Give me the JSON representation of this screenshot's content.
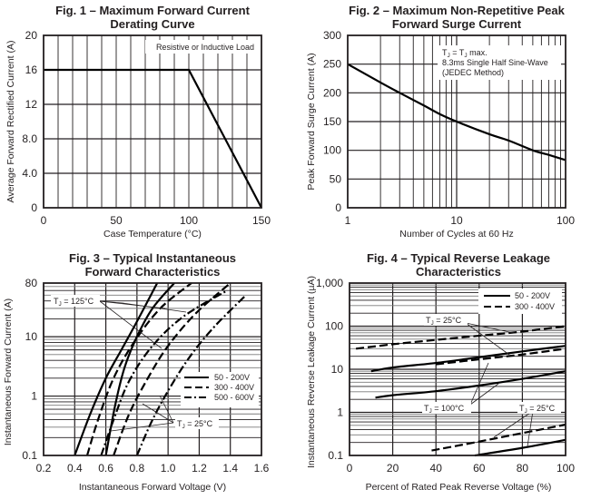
{
  "chart_data": [
    {
      "id": "fig1",
      "type": "line",
      "title": [
        "Fig. 1 – Maximum Forward Current",
        "Derating Curve"
      ],
      "xlabel": "Case Temperature (°C)",
      "ylabel": "Average Forward Rectified Current (A)",
      "xlim": [
        0,
        150
      ],
      "ylim": [
        0,
        20
      ],
      "xscale": "linear",
      "yscale": "linear",
      "xticks": [
        0,
        50,
        100,
        150
      ],
      "xtick_labels": [
        "0",
        "50",
        "100",
        "150"
      ],
      "yticks": [
        0,
        4,
        8,
        12,
        16,
        20
      ],
      "ytick_labels": [
        "0",
        "4.0",
        "8.0",
        "12",
        "16",
        "20"
      ],
      "grid": true,
      "annotations": [
        "Resistive or Inductive Load"
      ],
      "series": [
        {
          "name": "derating",
          "style": "solid",
          "x": [
            0,
            100,
            150
          ],
          "y": [
            16,
            16,
            0
          ]
        }
      ]
    },
    {
      "id": "fig2",
      "type": "line",
      "title": [
        "Fig. 2 – Maximum Non-Repetitive Peak",
        "Forward Surge Current"
      ],
      "xlabel": "Number of Cycles at 60 Hz",
      "ylabel": "Peak Forward Surge Current (A)",
      "xlim": [
        1,
        100
      ],
      "ylim": [
        0,
        300
      ],
      "xscale": "log",
      "yscale": "linear",
      "xticks": [
        1,
        10,
        100
      ],
      "xtick_labels": [
        "1",
        "10",
        "100"
      ],
      "yticks": [
        0,
        50,
        100,
        150,
        200,
        250,
        300
      ],
      "ytick_labels": [
        "0",
        "50",
        "100",
        "150",
        "200",
        "250",
        "300"
      ],
      "grid": true,
      "annotations": [
        "T<sub>J</sub> = T<sub>J</sub> max.",
        "8.3ms Single Half Sine-Wave",
        "(JEDEC Method)"
      ],
      "annotation_text": {
        "line1_a": "T",
        "line1_sub": "J",
        "line1_b": " = T",
        "line1_sub2": "J",
        "line1_c": " max.",
        "line2": "8.3ms Single Half Sine-Wave",
        "line3": "(JEDEC Method)"
      },
      "series": [
        {
          "name": "surge",
          "style": "solid",
          "x": [
            1,
            2,
            3,
            5,
            7,
            10,
            20,
            30,
            50,
            70,
            100
          ],
          "y": [
            250,
            218,
            200,
            178,
            163,
            150,
            128,
            117,
            100,
            92,
            83
          ]
        }
      ]
    },
    {
      "id": "fig3",
      "type": "line",
      "title": [
        "Fig. 3 – Typical Instantaneous",
        "Forward Characteristics"
      ],
      "xlabel": "Instantaneous Forward Voltage (V)",
      "ylabel": "Instantaneous Forward Current (A)",
      "xlim": [
        0.2,
        1.6
      ],
      "ylim": [
        0.1,
        80
      ],
      "xscale": "linear",
      "yscale": "log",
      "xticks": [
        0.2,
        0.4,
        0.6,
        0.8,
        1.0,
        1.2,
        1.4,
        1.6
      ],
      "xtick_labels": [
        "0.2",
        "0.4",
        "0.6",
        "0.8",
        "1.0",
        "1.2",
        "1.4",
        "1.6"
      ],
      "yticks": [
        0.1,
        1,
        10,
        80
      ],
      "ytick_labels": [
        "0.1",
        "1",
        "10",
        "80"
      ],
      "grid": true,
      "legend": {
        "position": "center-right",
        "entries": [
          {
            "label": "50 - 200V",
            "style": "solid"
          },
          {
            "label": "300 - 400V",
            "style": "dashed"
          },
          {
            "label": "500 - 600V",
            "style": "dashdot"
          }
        ]
      },
      "labels": {
        "tj125_a": "T",
        "tj125_sub": "J",
        "tj125_b": " = 125°C",
        "tj25_a": "T",
        "tj25_sub": "J",
        "tj25_b": " = 25°C"
      },
      "series": [
        {
          "name": "50 - 200V, TJ = 125°C",
          "style": "solid",
          "x": [
            0.4,
            0.5,
            0.6,
            0.7,
            0.8,
            0.93
          ],
          "y": [
            0.1,
            0.5,
            2,
            6,
            18,
            80
          ]
        },
        {
          "name": "50 - 200V, TJ = 25°C",
          "style": "solid",
          "x": [
            0.6,
            0.66,
            0.72,
            0.8,
            0.9,
            1.04
          ],
          "y": [
            0.1,
            0.7,
            3,
            10,
            30,
            80
          ]
        },
        {
          "name": "300 - 400V, TJ = 125°C",
          "style": "dashed",
          "x": [
            0.48,
            0.55,
            0.65,
            0.78,
            0.95,
            1.15
          ],
          "y": [
            0.1,
            0.4,
            2,
            8,
            30,
            80
          ]
        },
        {
          "name": "300 - 400V, TJ = 25°C",
          "style": "dashed",
          "x": [
            0.65,
            0.75,
            0.87,
            1.0,
            1.18,
            1.4
          ],
          "y": [
            0.1,
            0.5,
            2,
            7,
            25,
            80
          ]
        },
        {
          "name": "500 - 600V, TJ = 125°C",
          "style": "dashdot",
          "x": [
            0.57,
            0.65,
            0.75,
            0.9,
            1.1,
            1.38
          ],
          "y": [
            0.1,
            0.4,
            1.8,
            7,
            22,
            60
          ]
        },
        {
          "name": "500 - 600V, TJ = 25°C",
          "style": "dashdot",
          "x": [
            0.8,
            0.9,
            1.02,
            1.15,
            1.3,
            1.5
          ],
          "y": [
            0.1,
            0.4,
            1.5,
            5,
            15,
            50
          ]
        }
      ]
    },
    {
      "id": "fig4",
      "type": "line",
      "title": [
        "Fig. 4 – Typical Reverse Leakage",
        "Characteristics"
      ],
      "xlabel": "Percent of Rated Peak Reverse Voltage (%)",
      "ylabel": "Instantaneous Reverse Leakage Current (µA)",
      "xlim": [
        0,
        100
      ],
      "ylim": [
        0.1,
        1000
      ],
      "xscale": "linear",
      "yscale": "log",
      "xticks": [
        0,
        20,
        40,
        60,
        80,
        100
      ],
      "xtick_labels": [
        "0",
        "20",
        "40",
        "60",
        "80",
        "100"
      ],
      "yticks": [
        0.1,
        1,
        10,
        100,
        1000
      ],
      "ytick_labels": [
        "0.1",
        "1",
        "10",
        "100",
        "1,000"
      ],
      "grid": true,
      "legend": {
        "position": "top-right",
        "entries": [
          {
            "label": "50 - 200V",
            "style": "solid"
          },
          {
            "label": "300 - 400V",
            "style": "dashed"
          }
        ]
      },
      "labels": {
        "tj25_a": "T",
        "tj25_sub": "J",
        "tj25_b": " = 25°C",
        "tj100_a": "T",
        "tj100_sub": "J",
        "tj100_b": " = 100°C"
      },
      "series": [
        {
          "name": "300 - 400V, TJ = 100°C",
          "style": "dashed",
          "x": [
            3,
            20,
            40,
            60,
            80,
            100
          ],
          "y": [
            30,
            38,
            48,
            60,
            75,
            100
          ]
        },
        {
          "name": "50 - 200V, TJ = 100°C",
          "style": "solid",
          "x": [
            10,
            20,
            40,
            60,
            80,
            100
          ],
          "y": [
            9,
            11,
            14,
            19,
            26,
            35
          ]
        },
        {
          "name": "300 - 400V, TJ = 25°C (upper)",
          "style": "dashed",
          "x": [
            40,
            60,
            80,
            100
          ],
          "y": [
            13,
            17,
            22,
            30
          ]
        },
        {
          "name": "50 - 200V, TJ = 100°C (lower)",
          "style": "solid",
          "x": [
            12,
            20,
            40,
            60,
            80,
            100
          ],
          "y": [
            2.2,
            2.5,
            3.1,
            4.2,
            6,
            9
          ]
        },
        {
          "name": "300 - 400V, TJ = 25°C",
          "style": "dashed",
          "x": [
            38,
            60,
            80,
            100
          ],
          "y": [
            0.13,
            0.21,
            0.33,
            0.52
          ]
        },
        {
          "name": "50 - 200V, TJ = 25°C",
          "style": "solid",
          "x": [
            58,
            80,
            100
          ],
          "y": [
            0.1,
            0.15,
            0.23
          ]
        }
      ]
    }
  ]
}
